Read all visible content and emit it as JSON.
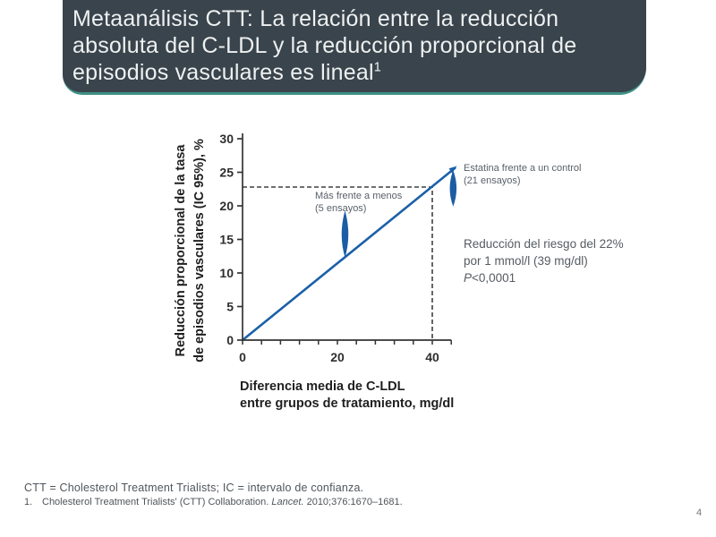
{
  "slide": {
    "page_number": "4"
  },
  "header": {
    "title": "Metaanálisis CTT: La relación entre la reducción absoluta del C-LDL y la reducción proporcional de episodios vasculares es lineal",
    "title_sup": "1",
    "bg_color": "#3a444c",
    "accent_color": "#3f9184"
  },
  "chart_data": {
    "type": "line",
    "title": "",
    "xlabel": "Diferencia media de C-LDL entre grupos de tratamiento, mg/dl",
    "ylabel": "Reducción proporcional de la tasa de episodios vasculares (IC 95%), %",
    "xlabel_lines": [
      "Diferencia media de C-LDL",
      "entre grupos de tratamiento, mg/dl"
    ],
    "ylabel_lines": [
      "Reducción proporcional de la tasa",
      "de episodios vasculares (IC 95%), %"
    ],
    "xlim": [
      0,
      44
    ],
    "ylim": [
      0,
      30
    ],
    "x_major_ticks": [
      0,
      20,
      40
    ],
    "x_minor_tick_step": 4,
    "y_ticks": [
      0,
      5,
      10,
      15,
      20,
      25,
      30
    ],
    "grid": false,
    "legend": "none",
    "trend_line": {
      "x1": 0,
      "y1": 0,
      "x2": 44.9,
      "y2": 25.7
    },
    "reference_lines": {
      "x": 40,
      "y": 22.8
    },
    "points": [
      {
        "label": "Más frente a menos",
        "trials": "(5 ensayos)",
        "x": 21.6,
        "y": 15.7,
        "ci_low": 12.3,
        "ci_high": 19.3
      },
      {
        "label": "Estatina frente  a un control",
        "trials": "(21 ensayos)",
        "x": 44.4,
        "y": 22.6,
        "ci_low": 19.9,
        "ci_high": 25.3
      }
    ],
    "annotation_lines": [
      "Reducción del riesgo del 22%",
      "por 1 mmol/l (39 mg/dl)",
      "P<0,0001"
    ],
    "annotation_italic_prefix": "P",
    "colors": {
      "line": "#1b60a8",
      "marker": "#1b5da4",
      "dashed": "#3d4043",
      "axis": "#333333"
    }
  },
  "footer": {
    "abbrev": "CTT = Cholesterol Treatment Trialists; IC = intervalo de confianza.",
    "reference_number": "1.",
    "reference_pre_italic": "Cholesterol Treatment Trialists' (CTT)  Collaboration.",
    "reference_italic": "Lancet.",
    "reference_post_italic": "2010;376:1670–1681."
  }
}
